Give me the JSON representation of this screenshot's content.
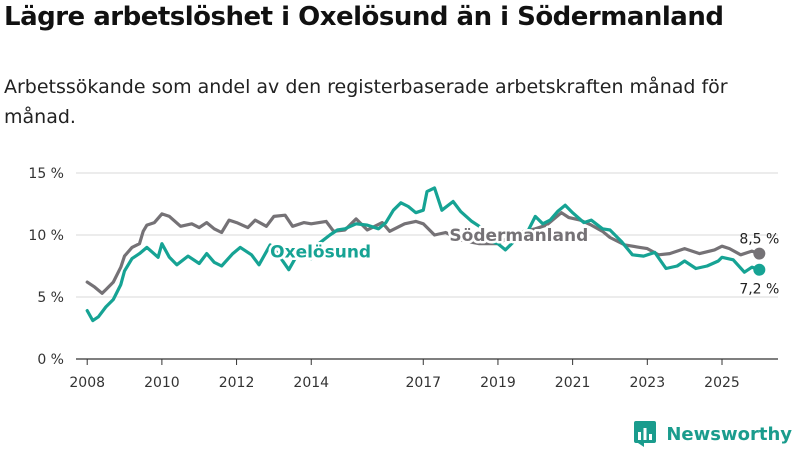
{
  "title": "Lägre arbetslöshet i Oxelösund än i Södermanland",
  "subtitle": "Arbetssökande som andel av den registerbaserade arbetskraften månad för månad.",
  "brand": "Newsworthy",
  "chart_data": {
    "type": "line",
    "title": "Lägre arbetslöshet i Oxelösund än i Södermanland",
    "subtitle": "Arbetssökande som andel av den registerbaserade arbetskraften månad för månad.",
    "xlabel": "",
    "ylabel": "",
    "x_range": [
      2007.7,
      2026.5
    ],
    "ylim": [
      0,
      15
    ],
    "grid": true,
    "y_ticks": [
      0,
      5,
      10,
      15
    ],
    "y_tick_labels": [
      "0 %",
      "5 %",
      "10 %",
      "15 %"
    ],
    "x_ticks": [
      2008,
      2010,
      2012,
      2014,
      2017,
      2019,
      2021,
      2023,
      2025
    ],
    "x_tick_labels": [
      "2008",
      "2010",
      "2012",
      "2014",
      "2017",
      "2019",
      "2021",
      "2023",
      "2025"
    ],
    "legend": "direct labels",
    "series": [
      {
        "name": "Södermanland",
        "color": "#757276",
        "x": [
          2008.0,
          2008.2,
          2008.4,
          2008.5,
          2008.7,
          2008.9,
          2009.0,
          2009.2,
          2009.4,
          2009.5,
          2009.6,
          2009.8,
          2010.0,
          2010.2,
          2010.5,
          2010.8,
          2011.0,
          2011.2,
          2011.4,
          2011.6,
          2011.8,
          2012.0,
          2012.3,
          2012.5,
          2012.8,
          2013.0,
          2013.3,
          2013.5,
          2013.8,
          2014.0,
          2014.4,
          2014.6,
          2014.9,
          2015.2,
          2015.5,
          2015.9,
          2016.1,
          2016.5,
          2016.8,
          2017.0,
          2017.3,
          2017.6,
          2018.0,
          2018.5,
          2019.0,
          2019.4,
          2019.7,
          2020.0,
          2020.3,
          2020.7,
          2020.9,
          2021.2,
          2021.5,
          2021.8,
          2022.0,
          2022.4,
          2022.8,
          2023.0,
          2023.3,
          2023.6,
          2024.0,
          2024.4,
          2024.8,
          2025.0,
          2025.2,
          2025.5,
          2025.8,
          2026.0
        ],
        "values": [
          6.2,
          5.8,
          5.3,
          5.6,
          6.2,
          7.4,
          8.3,
          9.0,
          9.3,
          10.3,
          10.8,
          11.0,
          11.7,
          11.5,
          10.7,
          10.9,
          10.6,
          11.0,
          10.5,
          10.2,
          11.2,
          11.0,
          10.6,
          11.2,
          10.7,
          11.5,
          11.6,
          10.7,
          11.0,
          10.9,
          11.1,
          10.3,
          10.4,
          11.3,
          10.4,
          11.0,
          10.3,
          10.9,
          11.1,
          10.9,
          10.0,
          10.2,
          9.6,
          9.3,
          9.3,
          10.0,
          10.3,
          10.5,
          10.8,
          11.8,
          11.4,
          11.2,
          10.8,
          10.3,
          9.8,
          9.2,
          9.0,
          8.9,
          8.4,
          8.5,
          8.9,
          8.5,
          8.8,
          9.1,
          8.9,
          8.4,
          8.7,
          8.5
        ]
      },
      {
        "name": "Oxelösund",
        "color": "#16a394",
        "x": [
          2008.0,
          2008.15,
          2008.3,
          2008.5,
          2008.7,
          2008.9,
          2009.0,
          2009.2,
          2009.4,
          2009.6,
          2009.9,
          2010.0,
          2010.2,
          2010.4,
          2010.7,
          2011.0,
          2011.2,
          2011.4,
          2011.6,
          2011.9,
          2012.1,
          2012.4,
          2012.6,
          2012.9,
          2013.1,
          2013.4,
          2013.7,
          2014.0,
          2014.2,
          2014.5,
          2014.7,
          2014.9,
          2015.2,
          2015.5,
          2015.8,
          2016.0,
          2016.2,
          2016.4,
          2016.6,
          2016.8,
          2017.0,
          2017.1,
          2017.3,
          2017.5,
          2017.8,
          2018.0,
          2018.3,
          2018.5,
          2018.8,
          2019.0,
          2019.2,
          2019.5,
          2019.8,
          2020.0,
          2020.2,
          2020.4,
          2020.6,
          2020.8,
          2021.0,
          2021.3,
          2021.5,
          2021.8,
          2022.0,
          2022.3,
          2022.6,
          2022.9,
          2023.2,
          2023.5,
          2023.8,
          2024.0,
          2024.3,
          2024.6,
          2024.9,
          2025.0,
          2025.3,
          2025.6,
          2025.8,
          2026.0
        ],
        "values": [
          3.9,
          3.1,
          3.4,
          4.2,
          4.8,
          6.0,
          7.1,
          8.1,
          8.5,
          9.0,
          8.2,
          9.3,
          8.2,
          7.6,
          8.3,
          7.7,
          8.5,
          7.8,
          7.5,
          8.5,
          9.0,
          8.4,
          7.6,
          9.2,
          8.5,
          7.2,
          8.8,
          8.1,
          9.3,
          10.0,
          10.4,
          10.5,
          10.9,
          10.8,
          10.5,
          11.0,
          12.0,
          12.6,
          12.3,
          11.8,
          12.0,
          13.5,
          13.8,
          12.0,
          12.7,
          11.9,
          11.1,
          10.7,
          9.5,
          9.3,
          8.8,
          9.7,
          10.3,
          11.5,
          10.9,
          11.2,
          11.9,
          12.4,
          11.8,
          11.0,
          11.2,
          10.5,
          10.4,
          9.5,
          8.4,
          8.3,
          8.6,
          7.3,
          7.5,
          7.9,
          7.3,
          7.5,
          7.9,
          8.2,
          8.0,
          7.0,
          7.4,
          7.2
        ]
      }
    ],
    "annotations": [
      {
        "series": "Södermanland",
        "label": "Södermanland"
      },
      {
        "series": "Oxelösund",
        "label": "Oxelösund"
      },
      {
        "series": "Södermanland",
        "label": "8,5 %"
      },
      {
        "series": "Oxelösund",
        "label": "7,2 %"
      }
    ]
  }
}
